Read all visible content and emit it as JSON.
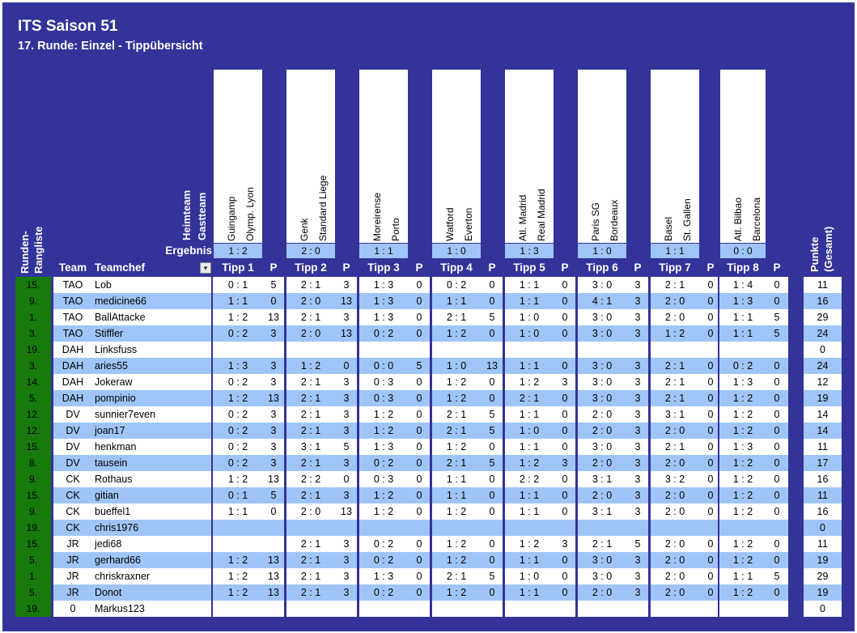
{
  "title": "ITS Saison 51",
  "subtitle": "17. Runde: Einzel - Tippübersicht",
  "labels": {
    "heimteam": "Heimteam",
    "gastteam": "Gastteam",
    "ergebnis": "Ergebnis",
    "runden_rangliste": "Runden-Rangliste",
    "team": "Team",
    "teamchef": "Teamchef",
    "p": "P",
    "punkte": "Punkte (Gesamt)"
  },
  "games": [
    {
      "home": "Guingamp",
      "away": "Olymp. Lyon",
      "result": "1 : 2",
      "tipp_label": "Tipp 1"
    },
    {
      "home": "Genk",
      "away": "Standard Liege",
      "result": "2 : 0",
      "tipp_label": "Tipp 2"
    },
    {
      "home": "Moreirense",
      "away": "Porto",
      "result": "1 : 1",
      "tipp_label": "Tipp 3"
    },
    {
      "home": "Watford",
      "away": "Everton",
      "result": "1 : 0",
      "tipp_label": "Tipp 4"
    },
    {
      "home": "Atl. Madrid",
      "away": "Real Madrid",
      "result": "1 : 3",
      "tipp_label": "Tipp 5"
    },
    {
      "home": "Paris SG",
      "away": "Bordeaux",
      "result": "1 : 0",
      "tipp_label": "Tipp 6"
    },
    {
      "home": "Basel",
      "away": "St. Gallen",
      "result": "1 : 1",
      "tipp_label": "Tipp 7"
    },
    {
      "home": "Atl. Bilbao",
      "away": "Barcelona",
      "result": "0 : 0",
      "tipp_label": "Tipp 8"
    }
  ],
  "rows": [
    {
      "rank": "15.",
      "team": "TAO",
      "chef": "Lob",
      "tipps": [
        "0 : 1",
        "5",
        "2 : 1",
        "3",
        "1 : 3",
        "0",
        "0 : 2",
        "0",
        "1 : 1",
        "0",
        "3 : 0",
        "3",
        "2 : 1",
        "0",
        "1 : 4",
        "0"
      ],
      "total": "11"
    },
    {
      "rank": "9.",
      "team": "TAO",
      "chef": "medicine66",
      "tipps": [
        "1 : 1",
        "0",
        "2 : 0",
        "13",
        "1 : 3",
        "0",
        "1 : 1",
        "0",
        "1 : 1",
        "0",
        "4 : 1",
        "3",
        "2 : 0",
        "0",
        "1 : 3",
        "0"
      ],
      "total": "16"
    },
    {
      "rank": "1.",
      "team": "TAO",
      "chef": "BallAttacke",
      "tipps": [
        "1 : 2",
        "13",
        "2 : 1",
        "3",
        "1 : 3",
        "0",
        "2 : 1",
        "5",
        "1 : 0",
        "0",
        "3 : 0",
        "3",
        "2 : 0",
        "0",
        "1 : 1",
        "5"
      ],
      "total": "29"
    },
    {
      "rank": "3.",
      "team": "TAO",
      "chef": "Stiffler",
      "tipps": [
        "0 : 2",
        "3",
        "2 : 0",
        "13",
        "0 : 2",
        "0",
        "1 : 2",
        "0",
        "1 : 0",
        "0",
        "3 : 0",
        "3",
        "1 : 2",
        "0",
        "1 : 1",
        "5"
      ],
      "total": "24"
    },
    {
      "rank": "19.",
      "team": "DAH",
      "chef": "Linksfuss",
      "tipps": [
        "",
        "",
        "",
        "",
        "",
        "",
        "",
        "",
        "",
        "",
        "",
        "",
        "",
        "",
        "",
        ""
      ],
      "total": "0"
    },
    {
      "rank": "3.",
      "team": "DAH",
      "chef": "aries55",
      "tipps": [
        "1 : 3",
        "3",
        "1 : 2",
        "0",
        "0 : 0",
        "5",
        "1 : 0",
        "13",
        "1 : 1",
        "0",
        "3 : 0",
        "3",
        "2 : 1",
        "0",
        "0 : 2",
        "0"
      ],
      "total": "24"
    },
    {
      "rank": "14.",
      "team": "DAH",
      "chef": "Jokeraw",
      "tipps": [
        "0 : 2",
        "3",
        "2 : 1",
        "3",
        "0 : 3",
        "0",
        "1 : 2",
        "0",
        "1 : 2",
        "3",
        "3 : 0",
        "3",
        "2 : 1",
        "0",
        "1 : 3",
        "0"
      ],
      "total": "12"
    },
    {
      "rank": "5.",
      "team": "DAH",
      "chef": "pompinio",
      "tipps": [
        "1 : 2",
        "13",
        "2 : 1",
        "3",
        "0 : 3",
        "0",
        "1 : 2",
        "0",
        "2 : 1",
        "0",
        "3 : 0",
        "3",
        "2 : 1",
        "0",
        "1 : 2",
        "0"
      ],
      "total": "19"
    },
    {
      "rank": "12.",
      "team": "DV",
      "chef": "sunnier7even",
      "tipps": [
        "0 : 2",
        "3",
        "2 : 1",
        "3",
        "1 : 2",
        "0",
        "2 : 1",
        "5",
        "1 : 1",
        "0",
        "2 : 0",
        "3",
        "3 : 1",
        "0",
        "1 : 2",
        "0"
      ],
      "total": "14"
    },
    {
      "rank": "12.",
      "team": "DV",
      "chef": "joan17",
      "tipps": [
        "0 : 2",
        "3",
        "2 : 1",
        "3",
        "1 : 2",
        "0",
        "2 : 1",
        "5",
        "1 : 0",
        "0",
        "2 : 0",
        "3",
        "2 : 0",
        "0",
        "1 : 2",
        "0"
      ],
      "total": "14"
    },
    {
      "rank": "15.",
      "team": "DV",
      "chef": "henkman",
      "tipps": [
        "0 : 2",
        "3",
        "3 : 1",
        "5",
        "1 : 3",
        "0",
        "1 : 2",
        "0",
        "1 : 1",
        "0",
        "3 : 0",
        "3",
        "2 : 1",
        "0",
        "1 : 3",
        "0"
      ],
      "total": "11"
    },
    {
      "rank": "8.",
      "team": "DV",
      "chef": "tausein",
      "tipps": [
        "0 : 2",
        "3",
        "2 : 1",
        "3",
        "0 : 2",
        "0",
        "2 : 1",
        "5",
        "1 : 2",
        "3",
        "2 : 0",
        "3",
        "2 : 0",
        "0",
        "1 : 2",
        "0"
      ],
      "total": "17"
    },
    {
      "rank": "9.",
      "team": "CK",
      "chef": "Rothaus",
      "tipps": [
        "1 : 2",
        "13",
        "2 : 2",
        "0",
        "0 : 3",
        "0",
        "1 : 1",
        "0",
        "2 : 2",
        "0",
        "3 : 1",
        "3",
        "3 : 2",
        "0",
        "1 : 2",
        "0"
      ],
      "total": "16"
    },
    {
      "rank": "15.",
      "team": "CK",
      "chef": "gitian",
      "tipps": [
        "0 : 1",
        "5",
        "2 : 1",
        "3",
        "1 : 2",
        "0",
        "1 : 1",
        "0",
        "1 : 1",
        "0",
        "2 : 0",
        "3",
        "2 : 0",
        "0",
        "1 : 2",
        "0"
      ],
      "total": "11"
    },
    {
      "rank": "9.",
      "team": "CK",
      "chef": "bueffel1",
      "tipps": [
        "1 : 1",
        "0",
        "2 : 0",
        "13",
        "1 : 2",
        "0",
        "1 : 2",
        "0",
        "1 : 1",
        "0",
        "3 : 1",
        "3",
        "2 : 0",
        "0",
        "1 : 2",
        "0"
      ],
      "total": "16"
    },
    {
      "rank": "19.",
      "team": "CK",
      "chef": "chris1976",
      "tipps": [
        "",
        "",
        "",
        "",
        "",
        "",
        "",
        "",
        "",
        "",
        "",
        "",
        "",
        "",
        "",
        ""
      ],
      "total": "0"
    },
    {
      "rank": "15.",
      "team": "JR",
      "chef": "jedi68",
      "tipps": [
        "",
        "",
        "2 : 1",
        "3",
        "0 : 2",
        "0",
        "1 : 2",
        "0",
        "1 : 2",
        "3",
        "2 : 1",
        "5",
        "2 : 0",
        "0",
        "1 : 2",
        "0"
      ],
      "total": "11"
    },
    {
      "rank": "5.",
      "team": "JR",
      "chef": "gerhard66",
      "tipps": [
        "1 : 2",
        "13",
        "2 : 1",
        "3",
        "0 : 2",
        "0",
        "1 : 2",
        "0",
        "1 : 1",
        "0",
        "3 : 0",
        "3",
        "2 : 0",
        "0",
        "1 : 2",
        "0"
      ],
      "total": "19"
    },
    {
      "rank": "1.",
      "team": "JR",
      "chef": "chriskraxner",
      "tipps": [
        "1 : 2",
        "13",
        "2 : 1",
        "3",
        "1 : 3",
        "0",
        "2 : 1",
        "5",
        "1 : 0",
        "0",
        "3 : 0",
        "3",
        "2 : 0",
        "0",
        "1 : 1",
        "5"
      ],
      "total": "29"
    },
    {
      "rank": "5.",
      "team": "JR",
      "chef": "Donot",
      "tipps": [
        "1 : 2",
        "13",
        "2 : 1",
        "3",
        "0 : 2",
        "0",
        "1 : 2",
        "0",
        "1 : 1",
        "0",
        "2 : 0",
        "3",
        "2 : 0",
        "0",
        "1 : 2",
        "0"
      ],
      "total": "19"
    },
    {
      "rank": "19.",
      "team": "0",
      "chef": "Markus123",
      "tipps": [
        "",
        "",
        "",
        "",
        "",
        "",
        "",
        "",
        "",
        "",
        "",
        "",
        "",
        "",
        "",
        ""
      ],
      "total": "0"
    }
  ],
  "colors": {
    "background": "#333399",
    "rank_green": "#167a0c",
    "stripe_blue": "#9fc5f8",
    "white": "#ffffff"
  },
  "icons": {
    "filter": "filter-dropdown-icon"
  }
}
